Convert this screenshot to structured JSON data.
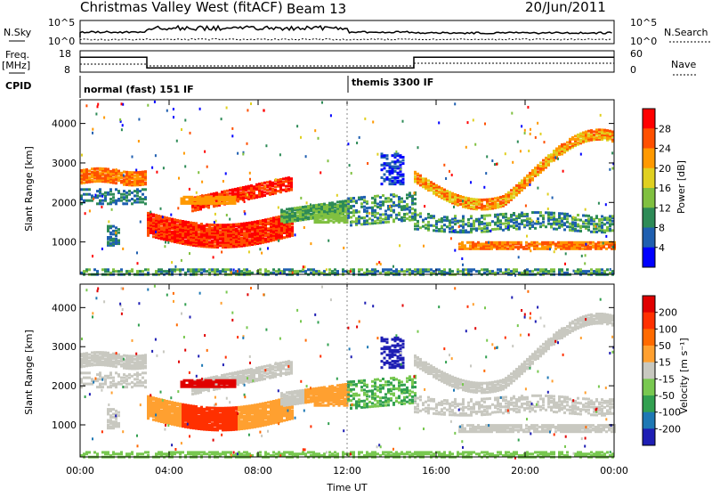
{
  "header": {
    "station": "Christmas Valley West (fitACF)",
    "beam": "Beam 13",
    "date": "20/Jun/2011"
  },
  "summary_panel": {
    "nsky_label": "N.Sky",
    "nsky_ticks": [
      "10^5",
      "10^0"
    ],
    "nsearch_label": "N.Search",
    "nsearch_ticks": [
      "10^5",
      "10^0"
    ],
    "freq_label": "Freq.",
    "freq_unit": "[MHz]",
    "freq_ticks": [
      "18",
      "8"
    ],
    "nave_label": "Nave",
    "nave_ticks": [
      "60",
      "0"
    ],
    "cpid_label": "CPID",
    "modes": [
      {
        "label": "normal (fast) 151 IF",
        "start_hour": 0
      },
      {
        "label": "themis 3300 IF",
        "start_hour": 12
      }
    ],
    "freq_series": {
      "x_hours": [
        0,
        3,
        3,
        15,
        15,
        24
      ],
      "values_mhz": [
        15,
        15,
        10,
        10,
        15,
        15
      ]
    }
  },
  "chart_data": [
    {
      "type": "heatmap",
      "parameter": "Power",
      "ylabel": "Slant Range [km]",
      "xlim": [
        0,
        24
      ],
      "ylim": [
        180,
        4600
      ],
      "yticks": [
        "1000",
        "2000",
        "3000",
        "4000"
      ],
      "colorbar": {
        "label": "Power [dB]",
        "ticks": [
          "4",
          "8",
          "12",
          "16",
          "20",
          "24",
          "28"
        ],
        "colors": [
          "#0000ff",
          "#1f5fb0",
          "#2e8b57",
          "#80c040",
          "#e0d020",
          "#ff9900",
          "#ff5000",
          "#ff0000"
        ]
      }
    },
    {
      "type": "heatmap",
      "parameter": "Velocity",
      "ylabel": "Slant Range [km]",
      "xlabel": "Time UT",
      "xlim": [
        0,
        24
      ],
      "ylim": [
        180,
        4600
      ],
      "xticks": [
        "00:00",
        "04:00",
        "08:00",
        "12:00",
        "16:00",
        "20:00",
        "00:00"
      ],
      "yticks": [
        "1000",
        "2000",
        "3000",
        "4000"
      ],
      "colorbar": {
        "label": "Velocity [m s⁻¹]",
        "ticks": [
          "200",
          "100",
          "50",
          "15",
          "-15",
          "-50",
          "-100",
          "-200"
        ],
        "colors": [
          "#1e1eb4",
          "#1e78b4",
          "#32a050",
          "#78c850",
          "#c8c8c0",
          "#ffa030",
          "#ff6a00",
          "#ff3000",
          "#e00000"
        ]
      }
    }
  ]
}
